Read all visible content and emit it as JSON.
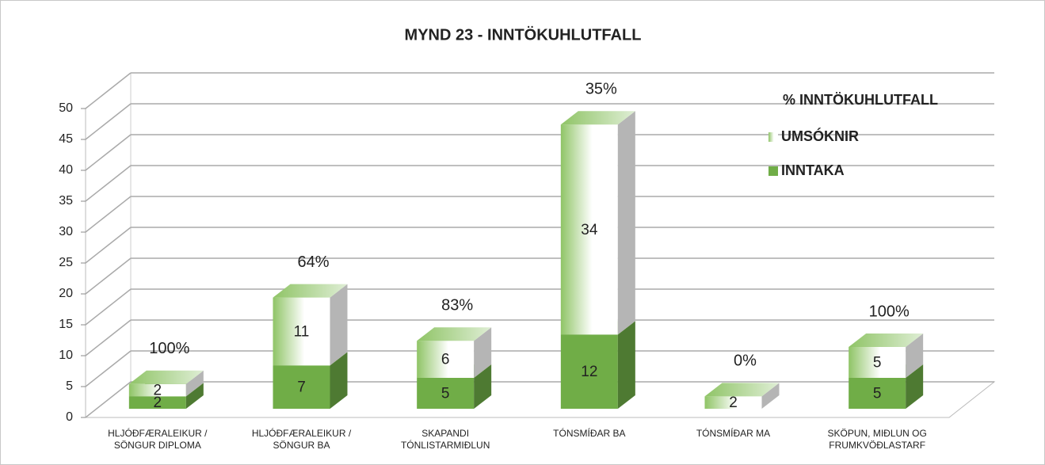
{
  "chart_data": {
    "type": "bar3d_stacked",
    "title": "MYND 23 - INNTÖKUHLUTFALL",
    "categories": [
      "HLJÓÐFÆRALEIKUR /\nSÖNGUR DIPLOMA",
      "HLJÓÐFÆRALEIKUR /\nSÖNGUR BA",
      "SKAPANDI\nTÓNLISTARMIÐLUN",
      "TÓNSMÍÐAR BA",
      "TÓNSMÍÐAR MA",
      "SKÖPUN, MIÐLUN OG\nFRUMKVÖÐLASTARF"
    ],
    "series": [
      {
        "name": "INNTAKA",
        "color": "#70ad47",
        "values": [
          2,
          7,
          5,
          12,
          0,
          5
        ]
      },
      {
        "name": "UMSÓKNIR",
        "color": "#8fc466",
        "values": [
          2,
          11,
          6,
          34,
          2,
          5
        ]
      }
    ],
    "ratio": {
      "name": "% INNTÖKUHLUTFALL",
      "values": [
        100,
        64,
        83,
        35,
        0,
        100
      ],
      "value_labels": [
        "100%",
        "64%",
        "83%",
        "35%",
        "0%",
        "100%"
      ]
    },
    "ylim": [
      0,
      50
    ],
    "yticks": [
      0,
      5,
      10,
      15,
      20,
      25,
      30,
      35,
      40,
      45,
      50
    ],
    "grid": true,
    "legend": "upper right"
  }
}
